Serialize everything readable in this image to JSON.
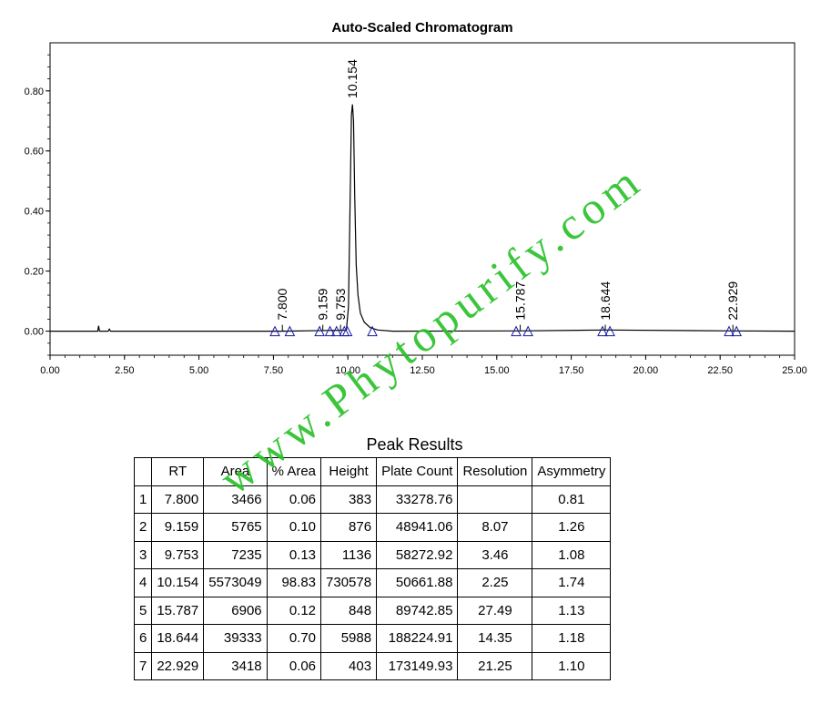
{
  "chart_data": {
    "type": "line",
    "title": "Auto-Scaled Chromatogram",
    "xlabel": "",
    "ylabel": "",
    "xlim": [
      0,
      25
    ],
    "ylim": [
      -0.08,
      0.96
    ],
    "x_ticks": [
      "0.00",
      "2.50",
      "5.00",
      "7.50",
      "10.00",
      "12.50",
      "15.00",
      "17.50",
      "20.00",
      "22.50",
      "25.00"
    ],
    "x_tick_values": [
      0,
      2.5,
      5,
      7.5,
      10,
      12.5,
      15,
      17.5,
      20,
      22.5,
      25
    ],
    "y_ticks": [
      "0.00",
      "0.20",
      "0.40",
      "0.60",
      "0.80"
    ],
    "y_tick_values": [
      0,
      0.2,
      0.4,
      0.6,
      0.8
    ],
    "grid": false,
    "series": [
      {
        "values": [
          [
            0,
            0
          ],
          [
            1.6,
            0.0
          ],
          [
            1.63,
            0.018
          ],
          [
            1.66,
            0.0
          ],
          [
            1.95,
            0.0
          ],
          [
            1.99,
            0.007
          ],
          [
            2.03,
            0.0
          ],
          [
            7.8,
            0.0
          ],
          [
            7.82,
            0.002
          ],
          [
            7.84,
            0.0
          ],
          [
            9.159,
            0.002
          ],
          [
            9.753,
            0.003
          ],
          [
            9.95,
            0.004
          ],
          [
            10.02,
            0.08
          ],
          [
            10.07,
            0.4
          ],
          [
            10.12,
            0.72
          ],
          [
            10.154,
            0.755
          ],
          [
            10.19,
            0.7
          ],
          [
            10.23,
            0.45
          ],
          [
            10.28,
            0.22
          ],
          [
            10.34,
            0.12
          ],
          [
            10.42,
            0.06
          ],
          [
            10.55,
            0.03
          ],
          [
            10.75,
            0.012
          ],
          [
            11.0,
            0.004
          ],
          [
            11.5,
            0.0
          ],
          [
            15.787,
            0.001
          ],
          [
            18.644,
            0.004
          ],
          [
            22.929,
            0.001
          ],
          [
            25,
            0
          ]
        ]
      }
    ],
    "peak_labels": [
      "7.800",
      "9.159",
      "9.753",
      "10.154",
      "15.787",
      "18.644",
      "22.929"
    ],
    "peak_rt": [
      7.8,
      9.159,
      9.753,
      10.154,
      15.787,
      18.644,
      22.929
    ],
    "baseline_markers_rt": [
      7.55,
      8.05,
      9.05,
      9.4,
      9.62,
      9.88,
      9.98,
      10.82,
      15.65,
      16.05,
      18.55,
      18.8,
      22.8,
      23.05
    ],
    "line_color": "#000000",
    "marker_color": "#1a1aa8"
  },
  "table": {
    "title": "Peak Results",
    "headers": [
      "",
      "RT",
      "Area",
      "% Area",
      "Height",
      "Plate Count",
      "Resolution",
      "Asymmetry"
    ],
    "rows": [
      [
        "1",
        "7.800",
        "3466",
        "0.06",
        "383",
        "33278.76",
        "",
        "0.81"
      ],
      [
        "2",
        "9.159",
        "5765",
        "0.10",
        "876",
        "48941.06",
        "8.07",
        "1.26"
      ],
      [
        "3",
        "9.753",
        "7235",
        "0.13",
        "1136",
        "58272.92",
        "3.46",
        "1.08"
      ],
      [
        "4",
        "10.154",
        "5573049",
        "98.83",
        "730578",
        "50661.88",
        "2.25",
        "1.74"
      ],
      [
        "5",
        "15.787",
        "6906",
        "0.12",
        "848",
        "89742.85",
        "27.49",
        "1.13"
      ],
      [
        "6",
        "18.644",
        "39333",
        "0.70",
        "5988",
        "188224.91",
        "14.35",
        "1.18"
      ],
      [
        "7",
        "22.929",
        "3418",
        "0.06",
        "403",
        "173149.93",
        "21.25",
        "1.10"
      ]
    ]
  },
  "watermark": {
    "text": "www.Phytopurify.com",
    "color": "#26c026"
  }
}
